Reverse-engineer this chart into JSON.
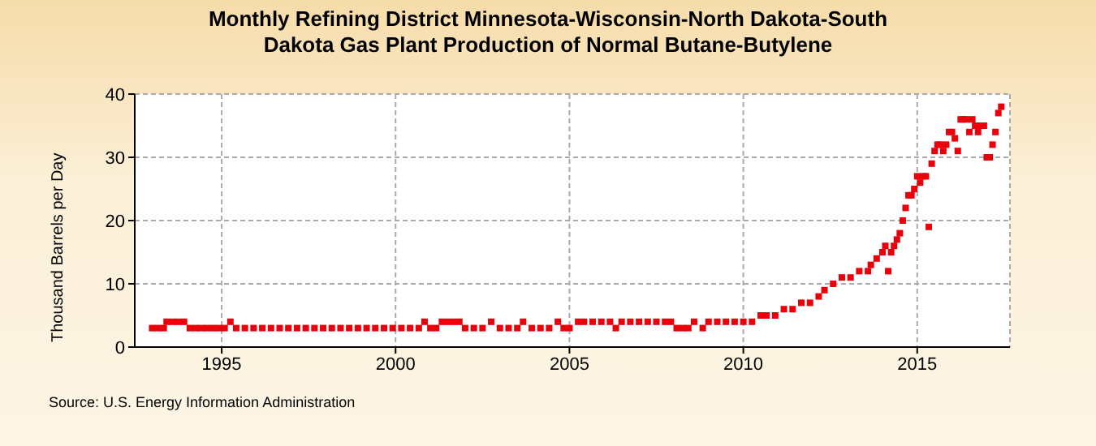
{
  "chart_data": {
    "type": "scatter",
    "title": "Monthly Refining District Minnesota-Wisconsin-North Dakota-South Dakota Gas Plant Production of Normal Butane-Butylene",
    "ylabel": "Thousand Barrels per Day",
    "annotations": [
      "Source: U.S. Energy Information Administration"
    ],
    "x": [
      "1993-01",
      "1993-03",
      "1993-05",
      "1993-06",
      "1993-08",
      "1993-10",
      "1993-12",
      "1994-02",
      "1994-04",
      "1994-06",
      "1994-08",
      "1994-10",
      "1994-12",
      "1995-02",
      "1995-04",
      "1995-06",
      "1995-09",
      "1995-12",
      "1996-03",
      "1996-06",
      "1996-09",
      "1996-12",
      "1997-03",
      "1997-06",
      "1997-09",
      "1997-12",
      "1998-03",
      "1998-06",
      "1998-09",
      "1998-12",
      "1999-03",
      "1999-06",
      "1999-09",
      "1999-12",
      "2000-03",
      "2000-06",
      "2000-09",
      "2000-11",
      "2001-01",
      "2001-03",
      "2001-05",
      "2001-07",
      "2001-09",
      "2001-11",
      "2002-01",
      "2002-04",
      "2002-07",
      "2002-10",
      "2003-01",
      "2003-04",
      "2003-07",
      "2003-09",
      "2003-12",
      "2004-03",
      "2004-06",
      "2004-09",
      "2004-11",
      "2005-01",
      "2005-04",
      "2005-06",
      "2005-09",
      "2005-12",
      "2006-03",
      "2006-05",
      "2006-07",
      "2006-10",
      "2007-01",
      "2007-04",
      "2007-07",
      "2007-10",
      "2007-12",
      "2008-02",
      "2008-04",
      "2008-06",
      "2008-08",
      "2008-11",
      "2009-01",
      "2009-04",
      "2009-07",
      "2009-10",
      "2010-01",
      "2010-04",
      "2010-07",
      "2010-09",
      "2010-12",
      "2011-03",
      "2011-06",
      "2011-09",
      "2011-12",
      "2012-03",
      "2012-05",
      "2012-08",
      "2012-11",
      "2013-02",
      "2013-05",
      "2013-08",
      "2013-09",
      "2013-11",
      "2014-01",
      "2014-02",
      "2014-03",
      "2014-04",
      "2014-05",
      "2014-06",
      "2014-07",
      "2014-08",
      "2014-09",
      "2014-10",
      "2014-11",
      "2014-12",
      "2015-01",
      "2015-02",
      "2015-03",
      "2015-04",
      "2015-05",
      "2015-06",
      "2015-07",
      "2015-08",
      "2015-09",
      "2015-10",
      "2015-11",
      "2015-12",
      "2016-01",
      "2016-02",
      "2016-03",
      "2016-04",
      "2016-05",
      "2016-06",
      "2016-07",
      "2016-08",
      "2016-09",
      "2016-10",
      "2016-11",
      "2016-12",
      "2017-01",
      "2017-02",
      "2017-03",
      "2017-04",
      "2017-05",
      "2017-06"
    ],
    "values": [
      3,
      3,
      3,
      4,
      4,
      4,
      4,
      3,
      3,
      3,
      3,
      3,
      3,
      3,
      4,
      3,
      3,
      3,
      3,
      3,
      3,
      3,
      3,
      3,
      3,
      3,
      3,
      3,
      3,
      3,
      3,
      3,
      3,
      3,
      3,
      3,
      3,
      4,
      3,
      3,
      4,
      4,
      4,
      4,
      3,
      3,
      3,
      4,
      3,
      3,
      3,
      4,
      3,
      3,
      3,
      4,
      3,
      3,
      4,
      4,
      4,
      4,
      4,
      3,
      4,
      4,
      4,
      4,
      4,
      4,
      4,
      3,
      3,
      3,
      4,
      3,
      4,
      4,
      4,
      4,
      4,
      4,
      5,
      5,
      5,
      6,
      6,
      7,
      7,
      8,
      9,
      10,
      11,
      11,
      12,
      12,
      13,
      14,
      15,
      16,
      12,
      15,
      16,
      17,
      18,
      20,
      22,
      24,
      24,
      25,
      27,
      26,
      27,
      27,
      19,
      29,
      31,
      32,
      32,
      31,
      32,
      34,
      34,
      33,
      31,
      36,
      36,
      36,
      34,
      36,
      35,
      34,
      35,
      35,
      30,
      30,
      32,
      34,
      37,
      38
    ],
    "color": "#e8000b",
    "marker": "square",
    "xlim": [
      "1992-07",
      "2017-09"
    ],
    "xticks": [
      "1995",
      "2000",
      "2005",
      "2010",
      "2015"
    ],
    "ylim": [
      0,
      40
    ],
    "yticks": [
      0,
      10,
      20,
      30,
      40
    ],
    "grid": true
  }
}
